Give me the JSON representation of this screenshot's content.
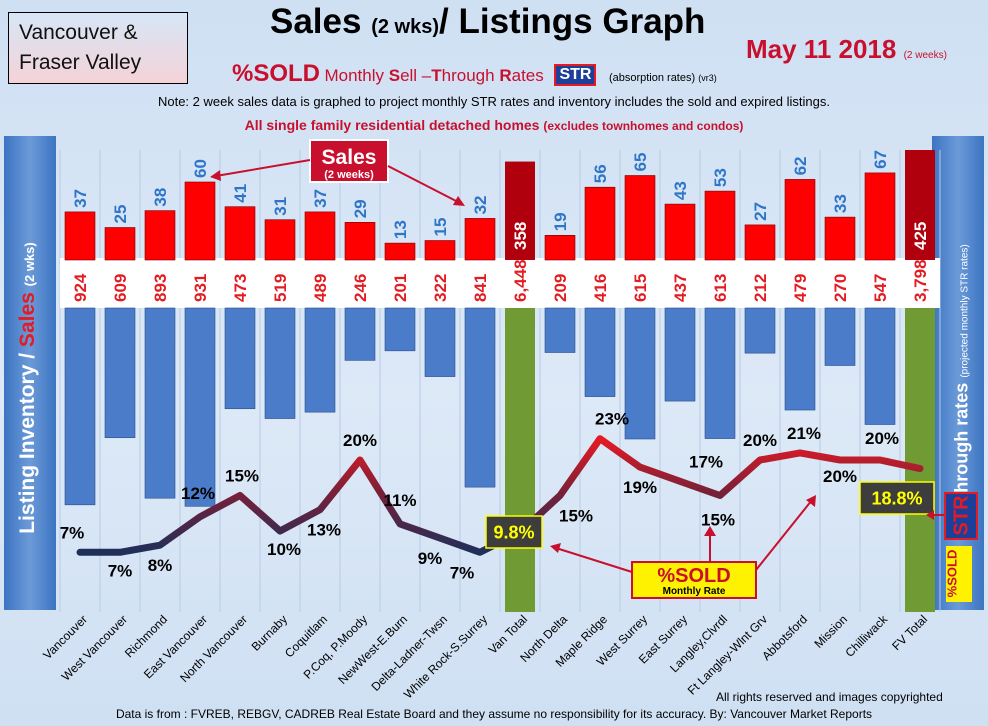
{
  "header": {
    "region_line1": "Vancouver &",
    "region_line2": "Fraser Valley",
    "title_part1": "Sales",
    "title_small": "(2 wks)",
    "title_part2": "/ Listings Graph",
    "date": "May 11 2018",
    "date_note": "(2 weeks)",
    "subtitle_sold": "%SOLD",
    "subtitle_rates_1": "Monthly",
    "subtitle_rates_S": "S",
    "subtitle_rates_2": "ell –",
    "subtitle_rates_T": "T",
    "subtitle_rates_3": "hrough",
    "subtitle_rates_R": "R",
    "subtitle_rates_4": "ates",
    "subtitle_str": "STR",
    "subtitle_absorption": "(absorption rates)",
    "subtitle_version": "(vr3)",
    "note": "Note: 2 week sales data is graphed to project monthly STR rates and inventory includes the sold and expired listings.",
    "homes_line": "All single family residential detached homes",
    "homes_note": "(excludes townhomes and condos)"
  },
  "left_axis": {
    "label_part1": "Listing Inventory /",
    "label_sales": "Sales",
    "label_note": "(2 wks)"
  },
  "right_axis": {
    "label": "Sell-through rates",
    "label_note": "(projected monthly STR rates)",
    "str": "STR",
    "sold": "%SOLD"
  },
  "annotations": {
    "sales_callout": "Sales",
    "sales_callout_note": "(2 weeks)",
    "sold_callout": "%SOLD",
    "sold_callout_note": "Monthly Rate",
    "van_total_rate": "9.8%",
    "fv_total_rate": "18.8%"
  },
  "footer": {
    "rights": "All rights reserved and  images copyrighted",
    "source": "Data is from : FVREB, REBGV, CADREB Real Estate Board and they assume no responsibility for its accuracy. By: Vancouver Market Reports"
  },
  "colors": {
    "sales_bar": "#ff0000",
    "inventory_bar": "#4a7cc9",
    "total_sales_bar": "#b0000e",
    "total_column": "#6f9a34",
    "sales_label": "#2e75c8",
    "inventory_label": "#e31b23",
    "rate_line_low": "#1c2f5a",
    "rate_line_high": "#e31b23"
  },
  "chart_data": {
    "type": "bar",
    "categories": [
      "Vancouver",
      "West Vancouver",
      "Richmond",
      "East Vancouver",
      "North Vancouver",
      "Burnaby",
      "Coquitlam",
      "P.Coq, P.Moody",
      "NewWest-E.Burn",
      "Delta-Ladner-Twsn",
      "White Rock-S.Surrey",
      "Van Total",
      "North Delta",
      "Maple Ridge",
      "West Surrey",
      "East Surrey",
      "Langley,Clvrdl",
      "Ft Langley-Wlnt Grv",
      "Abbotsford",
      "Mission",
      "Chilliwack",
      "FV Total"
    ],
    "series": [
      {
        "name": "Sales",
        "values": [
          37,
          25,
          38,
          60,
          41,
          31,
          37,
          29,
          13,
          15,
          32,
          358,
          19,
          56,
          65,
          43,
          53,
          27,
          62,
          33,
          67,
          425
        ]
      },
      {
        "name": "Listing Inventory",
        "values": [
          924,
          609,
          893,
          931,
          473,
          519,
          489,
          246,
          201,
          322,
          841,
          6448,
          209,
          416,
          615,
          437,
          613,
          212,
          479,
          270,
          547,
          3798
        ]
      },
      {
        "name": "%SOLD Monthly Rate",
        "values": [
          7,
          7,
          8,
          12,
          15,
          10,
          13,
          20,
          11,
          9,
          7,
          9.8,
          15,
          23,
          19,
          17,
          15,
          20,
          21,
          20,
          20,
          18.8
        ]
      }
    ],
    "inventory_labels": [
      "924",
      "609",
      "893",
      "931",
      "473",
      "519",
      "489",
      "246",
      "201",
      "322",
      "841",
      "6,448",
      "209",
      "416",
      "615",
      "437",
      "613",
      "212",
      "479",
      "270",
      "547",
      "3,798"
    ],
    "rate_labels": [
      "7%",
      "7%",
      "8%",
      "12%",
      "15%",
      "10%",
      "13%",
      "20%",
      "11%",
      "9%",
      "7%",
      "9.8%",
      "15%",
      "23%",
      "19%",
      "17%",
      "15%",
      "20%",
      "21%",
      "20%",
      "20%",
      "18.8%"
    ],
    "title": "Sales (2 wks)/ Listings Graph",
    "xlabel": "",
    "ylabel": "Listing Inventory / Sales (2 wks)",
    "y2label": "Sell-through rates",
    "grid": true
  }
}
